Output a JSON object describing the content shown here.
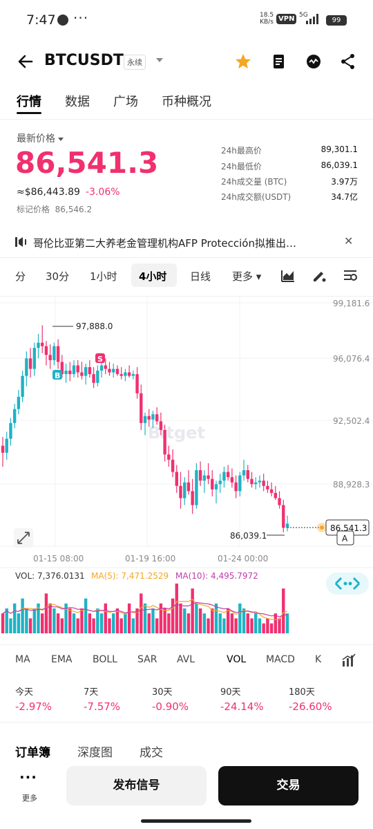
{
  "status_bar": {
    "time": "7:47",
    "speed_top": "18.5",
    "speed_bottom": "KB/s",
    "vpn": "VPN",
    "network": "5G",
    "battery": "99"
  },
  "header": {
    "symbol": "BTCUSDT",
    "contract": "永续"
  },
  "tabs": [
    {
      "label": "行情",
      "active": true
    },
    {
      "label": "数据"
    },
    {
      "label": "广场"
    },
    {
      "label": "币种概况"
    }
  ],
  "price": {
    "label": "最新价格",
    "last": "86,541.3",
    "usd": "≈$86,443.89",
    "change": "-3.06%",
    "mark_label": "标记价格",
    "mark_value": "86,546.2"
  },
  "stats": [
    {
      "k": "24h最高价",
      "v": "89,301.1"
    },
    {
      "k": "24h最低价",
      "v": "86,039.1"
    },
    {
      "k": "24h成交量 (BTC)",
      "v": "3.97万"
    },
    {
      "k": "24h成交额(USDT)",
      "v": "34.7亿"
    }
  ],
  "announcement": "哥伦比亚第二大养老金管理机构AFP Protección拟推出…",
  "timeframes": [
    {
      "label": "分"
    },
    {
      "label": "30分"
    },
    {
      "label": "1小时"
    },
    {
      "label": "4小时",
      "active": true
    },
    {
      "label": "日线"
    },
    {
      "label": "更多"
    }
  ],
  "chart_data": {
    "type": "candlestick",
    "y_ticks": [
      "99,181.6",
      "96,076.4",
      "92,502.4",
      "88,928.3"
    ],
    "x_ticks": [
      "01-15 08:00",
      "01-19 16:00",
      "01-24 00:00"
    ],
    "high_label": "97,888.0",
    "low_label": "86,039.1",
    "last_label": "86,541.3",
    "last_value": 86541.3,
    "buy_marker": "B",
    "sell_marker": "S",
    "alert_marker": "A",
    "watermark": "Bitget",
    "ylim": [
      86039.1,
      99181.6
    ],
    "ohlc": [
      [
        91.0,
        91.5,
        89.8,
        90.6
      ],
      [
        90.6,
        91.8,
        90.2,
        91.4
      ],
      [
        91.4,
        92.6,
        91.0,
        92.3
      ],
      [
        92.3,
        93.4,
        92.0,
        93.1
      ],
      [
        93.1,
        94.2,
        92.8,
        93.8
      ],
      [
        93.8,
        95.3,
        93.5,
        95.0
      ],
      [
        95.0,
        96.4,
        94.4,
        96.0
      ],
      [
        96.0,
        96.6,
        94.9,
        95.4
      ],
      [
        95.4,
        96.9,
        95.0,
        96.6
      ],
      [
        96.6,
        97.4,
        96.0,
        96.9
      ],
      [
        96.9,
        97.9,
        96.3,
        96.7
      ],
      [
        96.7,
        97.0,
        95.6,
        96.2
      ],
      [
        96.2,
        96.8,
        95.4,
        95.9
      ],
      [
        95.9,
        96.9,
        95.6,
        96.7
      ],
      [
        96.7,
        97.1,
        95.4,
        95.8
      ],
      [
        95.8,
        96.2,
        94.9,
        95.1
      ],
      [
        95.1,
        95.7,
        94.6,
        95.3
      ],
      [
        95.3,
        95.8,
        94.7,
        95.1
      ],
      [
        95.1,
        95.9,
        94.9,
        95.6
      ],
      [
        95.6,
        95.9,
        94.9,
        95.2
      ],
      [
        95.2,
        95.8,
        94.8,
        95.0
      ],
      [
        95.0,
        95.7,
        94.5,
        95.5
      ],
      [
        95.5,
        95.9,
        94.9,
        95.1
      ],
      [
        95.1,
        95.5,
        94.3,
        94.6
      ],
      [
        94.6,
        95.6,
        94.4,
        95.3
      ],
      [
        95.3,
        95.9,
        94.9,
        95.6
      ],
      [
        95.6,
        96.0,
        95.1,
        95.4
      ],
      [
        95.4,
        95.8,
        95.0,
        95.2
      ],
      [
        95.2,
        95.7,
        94.9,
        95.4
      ],
      [
        95.4,
        95.6,
        95.0,
        95.1
      ],
      [
        95.1,
        95.5,
        94.8,
        95.0
      ],
      [
        95.0,
        95.4,
        94.7,
        95.2
      ],
      [
        95.2,
        95.6,
        94.9,
        95.0
      ],
      [
        95.0,
        95.3,
        94.8,
        95.1
      ],
      [
        95.1,
        95.5,
        93.7,
        94.0
      ],
      [
        94.0,
        94.5,
        91.9,
        92.3
      ],
      [
        92.3,
        92.9,
        91.6,
        92.7
      ],
      [
        92.7,
        93.1,
        92.1,
        92.5
      ],
      [
        92.5,
        93.0,
        92.0,
        92.8
      ],
      [
        92.8,
        93.2,
        92.2,
        92.4
      ],
      [
        92.4,
        92.9,
        91.6,
        91.9
      ],
      [
        91.9,
        92.2,
        90.1,
        90.5
      ],
      [
        90.5,
        91.0,
        89.8,
        90.2
      ],
      [
        90.2,
        90.8,
        89.2,
        89.5
      ],
      [
        89.5,
        89.9,
        88.3,
        88.7
      ],
      [
        88.7,
        89.5,
        87.4,
        88.0
      ],
      [
        88.0,
        89.2,
        87.6,
        88.9
      ],
      [
        88.9,
        89.6,
        88.2,
        88.4
      ],
      [
        88.4,
        89.1,
        87.1,
        87.6
      ],
      [
        87.6,
        90.0,
        87.4,
        89.6
      ],
      [
        89.6,
        90.1,
        88.7,
        89.0
      ],
      [
        89.0,
        89.6,
        88.3,
        89.3
      ],
      [
        89.3,
        90.0,
        88.8,
        89.1
      ],
      [
        89.1,
        89.6,
        88.1,
        88.5
      ],
      [
        88.5,
        89.0,
        87.7,
        88.8
      ],
      [
        88.8,
        89.4,
        88.3,
        89.0
      ],
      [
        89.0,
        89.8,
        88.6,
        89.5
      ],
      [
        89.5,
        89.9,
        89.0,
        89.2
      ],
      [
        89.2,
        89.7,
        88.6,
        88.9
      ],
      [
        88.9,
        89.3,
        88.0,
        88.4
      ],
      [
        88.4,
        89.5,
        88.1,
        89.3
      ],
      [
        89.3,
        90.2,
        89.0,
        89.6
      ],
      [
        89.6,
        89.9,
        88.9,
        89.1
      ],
      [
        89.1,
        89.5,
        88.6,
        88.8
      ],
      [
        88.8,
        89.2,
        88.5,
        88.9
      ],
      [
        88.9,
        89.3,
        88.6,
        89.0
      ],
      [
        89.0,
        89.4,
        88.4,
        88.7
      ],
      [
        88.7,
        89.0,
        88.3,
        88.5
      ],
      [
        88.5,
        88.9,
        88.1,
        88.3
      ],
      [
        88.3,
        88.7,
        87.9,
        88.0
      ],
      [
        88.0,
        88.4,
        87.4,
        87.6
      ],
      [
        87.6,
        87.9,
        86.04,
        86.3
      ],
      [
        86.3,
        87.0,
        86.1,
        86.54
      ]
    ],
    "volume": {
      "label": "VOL: 7,376.0131",
      "ma5_label": "MA(5): 7,471.2529",
      "ma10_label": "MA(10): 4,495.7972",
      "values": [
        4,
        5,
        3,
        6,
        4,
        7,
        5,
        3,
        5,
        6,
        4,
        8,
        6,
        5,
        4,
        3,
        6,
        5,
        4,
        3,
        5,
        7,
        4,
        3,
        5,
        4,
        6,
        3,
        4,
        5,
        3,
        4,
        6,
        3,
        5,
        8,
        6,
        4,
        5,
        3,
        6,
        5,
        4,
        7,
        10,
        6,
        5,
        4,
        9,
        6,
        5,
        4,
        3,
        5,
        6,
        4,
        3,
        5,
        4,
        3,
        6,
        5,
        4,
        3,
        4,
        3,
        2,
        3,
        2,
        4,
        3,
        9,
        4
      ]
    }
  },
  "indicators": [
    "MA",
    "EMA",
    "BOLL",
    "SAR",
    "AVL",
    "VOL",
    "MACD",
    "K"
  ],
  "performance": [
    {
      "label": "今天",
      "value": "-2.97%"
    },
    {
      "label": "7天",
      "value": "-7.57%"
    },
    {
      "label": "30天",
      "value": "-0.90%"
    },
    {
      "label": "90天",
      "value": "-24.14%"
    },
    {
      "label": "180天",
      "value": "-26.60%"
    }
  ],
  "orderbook_tabs": [
    "订单簿",
    "深度图",
    "成交"
  ],
  "bottom": {
    "more_dots": "···",
    "more_label": "更多",
    "signal": "发布信号",
    "trade": "交易"
  },
  "colors": {
    "up": "#1fb3c4",
    "down": "#f0306f",
    "ma5": "#f5a623",
    "ma10": "#c43aa8"
  }
}
